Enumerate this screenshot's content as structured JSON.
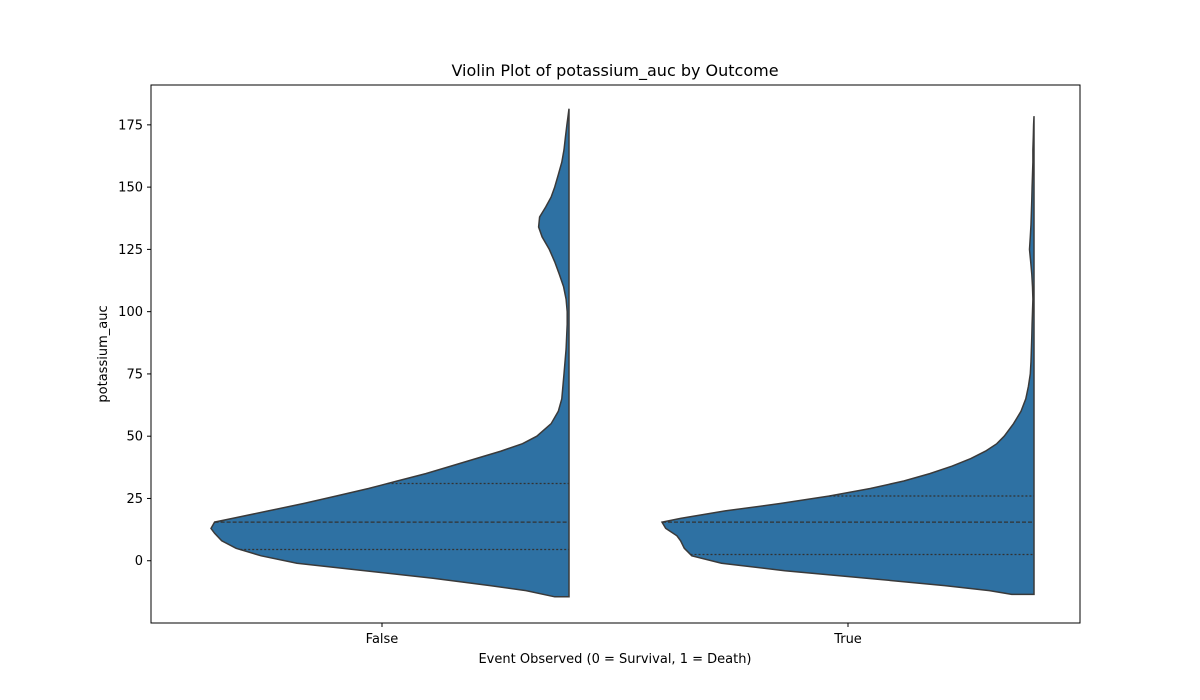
{
  "chart_data": {
    "type": "violin",
    "title": "Violin Plot of potassium_auc by Outcome",
    "xlabel": "Event Observed (0 = Survival, 1 = Death)",
    "ylabel": "potassium_auc",
    "categories": [
      "False",
      "True"
    ],
    "ylim": [
      -25,
      191
    ],
    "yticks": [
      0,
      25,
      50,
      75,
      100,
      125,
      150,
      175
    ],
    "split": "left-half",
    "colors": {
      "fill": "#2e71a3",
      "edge": "#3a3a3a"
    },
    "grid": false,
    "violins": [
      {
        "category": "False",
        "min": -14.5,
        "max": 181.5,
        "quartiles": {
          "q1": 4.5,
          "median": 15.5,
          "q3": 31.0
        },
        "density": [
          [
            -14.5,
            0.04
          ],
          [
            -12,
            0.12
          ],
          [
            -10,
            0.22
          ],
          [
            -7,
            0.38
          ],
          [
            -4,
            0.57
          ],
          [
            -1,
            0.76
          ],
          [
            2,
            0.86
          ],
          [
            5,
            0.93
          ],
          [
            8,
            0.97
          ],
          [
            11,
            0.99
          ],
          [
            13,
            1.0
          ],
          [
            15.5,
            0.99
          ],
          [
            17,
            0.94
          ],
          [
            20,
            0.84
          ],
          [
            23,
            0.74
          ],
          [
            26,
            0.65
          ],
          [
            29,
            0.56
          ],
          [
            32,
            0.48
          ],
          [
            35,
            0.4
          ],
          [
            38,
            0.33
          ],
          [
            41,
            0.26
          ],
          [
            44,
            0.19
          ],
          [
            47,
            0.13
          ],
          [
            50,
            0.09
          ],
          [
            55,
            0.05
          ],
          [
            60,
            0.03
          ],
          [
            65,
            0.02
          ],
          [
            75,
            0.014
          ],
          [
            85,
            0.008
          ],
          [
            95,
            0.005
          ],
          [
            100,
            0.005
          ],
          [
            105,
            0.008
          ],
          [
            110,
            0.015
          ],
          [
            115,
            0.027
          ],
          [
            120,
            0.04
          ],
          [
            125,
            0.055
          ],
          [
            130,
            0.075
          ],
          [
            134,
            0.085
          ],
          [
            138,
            0.082
          ],
          [
            142,
            0.065
          ],
          [
            146,
            0.05
          ],
          [
            150,
            0.04
          ],
          [
            155,
            0.03
          ],
          [
            160,
            0.02
          ],
          [
            165,
            0.014
          ],
          [
            170,
            0.01
          ],
          [
            175,
            0.006
          ],
          [
            178,
            0.003
          ],
          [
            181.5,
            0.0
          ]
        ]
      },
      {
        "category": "True",
        "min": -13.5,
        "max": 178.5,
        "quartiles": {
          "q1": 2.5,
          "median": 15.5,
          "q3": 26.0
        },
        "density": [
          [
            -13.5,
            0.06
          ],
          [
            -12,
            0.12
          ],
          [
            -10,
            0.24
          ],
          [
            -7,
            0.45
          ],
          [
            -4,
            0.67
          ],
          [
            -1,
            0.84
          ],
          [
            2,
            0.92
          ],
          [
            5,
            0.94
          ],
          [
            8,
            0.95
          ],
          [
            10,
            0.96
          ],
          [
            13,
            0.99
          ],
          [
            15.5,
            1.0
          ],
          [
            17,
            0.95
          ],
          [
            20,
            0.83
          ],
          [
            23,
            0.68
          ],
          [
            26,
            0.55
          ],
          [
            29,
            0.44
          ],
          [
            32,
            0.35
          ],
          [
            35,
            0.28
          ],
          [
            38,
            0.22
          ],
          [
            41,
            0.17
          ],
          [
            44,
            0.13
          ],
          [
            47,
            0.1
          ],
          [
            50,
            0.08
          ],
          [
            55,
            0.055
          ],
          [
            60,
            0.035
          ],
          [
            65,
            0.022
          ],
          [
            70,
            0.015
          ],
          [
            75,
            0.01
          ],
          [
            80,
            0.008
          ],
          [
            85,
            0.007
          ],
          [
            90,
            0.006
          ],
          [
            95,
            0.005
          ],
          [
            100,
            0.004
          ],
          [
            105,
            0.003
          ],
          [
            110,
            0.004
          ],
          [
            115,
            0.006
          ],
          [
            120,
            0.009
          ],
          [
            125,
            0.012
          ],
          [
            130,
            0.01
          ],
          [
            135,
            0.008
          ],
          [
            140,
            0.007
          ],
          [
            145,
            0.006
          ],
          [
            150,
            0.005
          ],
          [
            155,
            0.004
          ],
          [
            160,
            0.003
          ],
          [
            165,
            0.003
          ],
          [
            170,
            0.002
          ],
          [
            175,
            0.001
          ],
          [
            178.5,
            0.0
          ]
        ]
      }
    ]
  }
}
